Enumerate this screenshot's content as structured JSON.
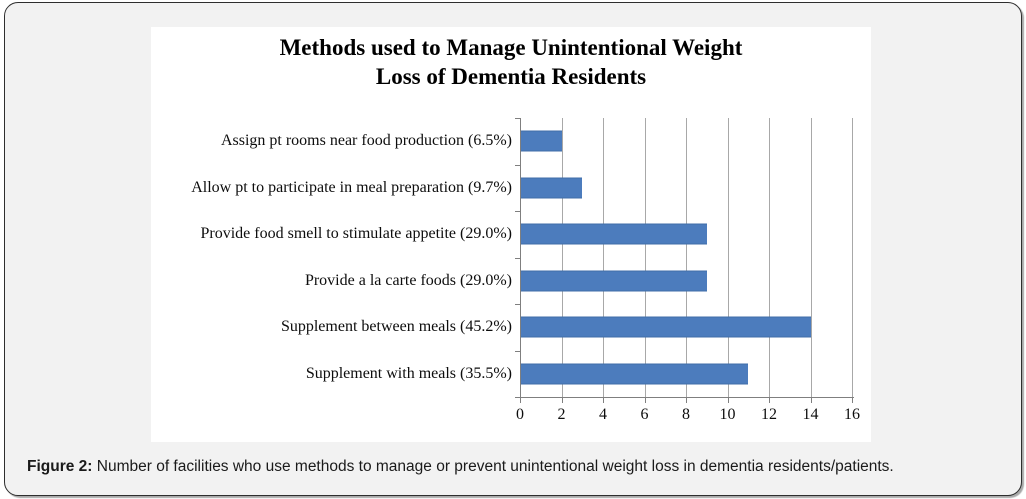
{
  "chart_data": {
    "type": "bar",
    "orientation": "horizontal",
    "title": "Methods used to Manage Unintentional Weight Loss of Dementia Residents",
    "title_lines": [
      "Methods used to Manage Unintentional Weight",
      "Loss of Dementia Residents"
    ],
    "categories": [
      "Assign pt rooms near food production (6.5%)",
      "Allow pt to participate in meal preparation (9.7%)",
      "Provide food smell to stimulate appetite (29.0%)",
      "Provide a la carte foods (29.0%)",
      "Supplement between meals (45.2%)",
      "Supplement with meals (35.5%)"
    ],
    "values": [
      2,
      3,
      9,
      9,
      14,
      11
    ],
    "percentages": [
      6.5,
      9.7,
      29.0,
      29.0,
      45.2,
      35.5
    ],
    "xlabel": "",
    "ylabel": "",
    "xlim": [
      0,
      16
    ],
    "xticks": [
      0,
      2,
      4,
      6,
      8,
      10,
      12,
      14,
      16
    ],
    "grid": true,
    "legend": false,
    "bar_color": "#4c7cbd",
    "gridline_color": "#a8a8a8",
    "axis_color": "#7f7f7f"
  },
  "caption": {
    "label": "Figure 2:",
    "text": "Number of facilities who use methods to manage or prevent unintentional weight loss in dementia residents/patients."
  }
}
